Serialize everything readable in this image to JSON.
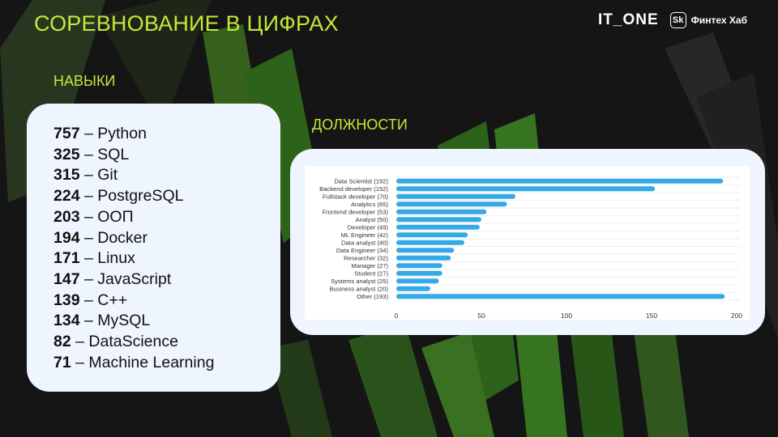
{
  "slide": {
    "title": "СОРЕВНОВАНИЕ В ЦИФРАХ",
    "skills_label": "НАВЫКИ",
    "positions_label": "ДОЛЖНОСТИ"
  },
  "logos": {
    "itone": "IT_ONE",
    "sk_mark": "Sk",
    "fintech_hub": "Финтех Хаб"
  },
  "skills": [
    {
      "count": "757",
      "name": "Python"
    },
    {
      "count": "325",
      "name": "SQL"
    },
    {
      "count": "315",
      "name": "Git"
    },
    {
      "count": "224",
      "name": "PostgreSQL"
    },
    {
      "count": "203",
      "name": "ООП"
    },
    {
      "count": "194",
      "name": "Docker"
    },
    {
      "count": "171",
      "name": "Linux"
    },
    {
      "count": "147",
      "name": "JavaScript"
    },
    {
      "count": "139",
      "name": "C++"
    },
    {
      "count": "134",
      "name": "MySQL"
    },
    {
      "count": "82",
      "name": "DataScience"
    },
    {
      "count": "71",
      "name": "Machine Learning"
    }
  ],
  "colors": {
    "accent": "#c4e838",
    "bar": "#35a9e6",
    "background": "#151515",
    "card": "#eef5ff"
  },
  "chart_data": {
    "type": "bar",
    "orientation": "horizontal",
    "categories": [
      "Data Scientist (192)",
      "Backend developer (152)",
      "Fullstack developer (70)",
      "Analytics (65)",
      "Frontend developer (53)",
      "Analyst (50)",
      "Developer (49)",
      "ML Engineer (42)",
      "Data analyst (40)",
      "Data Engineer (34)",
      "Researcher (32)",
      "Manager (27)",
      "Student (27)",
      "Systems analyst (25)",
      "Business analyst (20)",
      "Other (193)"
    ],
    "values": [
      192,
      152,
      70,
      65,
      53,
      50,
      49,
      42,
      40,
      34,
      32,
      27,
      27,
      25,
      20,
      193
    ],
    "xlim": [
      0,
      200
    ],
    "xticks": [
      0,
      50,
      100,
      150,
      200
    ],
    "title": "",
    "xlabel": "",
    "ylabel": "",
    "grid": true
  }
}
